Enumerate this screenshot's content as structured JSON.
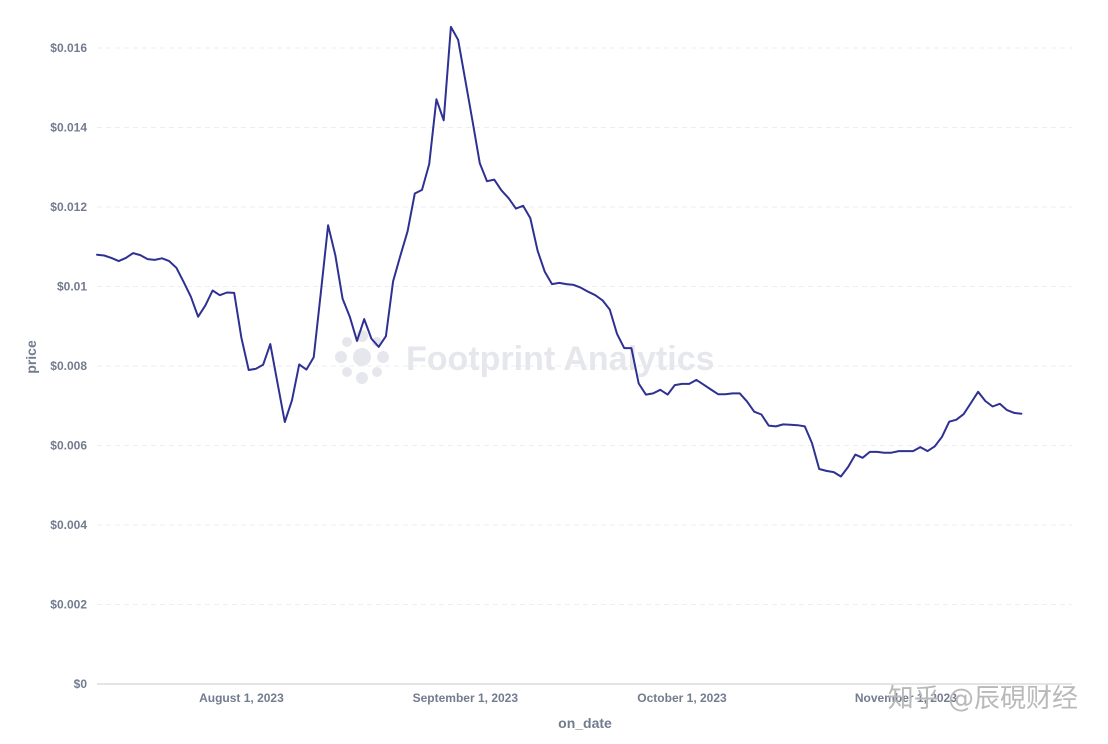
{
  "chart_data": {
    "type": "line",
    "xlabel": "on_date",
    "ylabel": "price",
    "ylim": [
      0,
      0.016
    ],
    "y_ticks": [
      {
        "value": 0,
        "label": "$0"
      },
      {
        "value": 0.002,
        "label": "$0.002"
      },
      {
        "value": 0.004,
        "label": "$0.004"
      },
      {
        "value": 0.006,
        "label": "$0.006"
      },
      {
        "value": 0.008,
        "label": "$0.008"
      },
      {
        "value": 0.01,
        "label": "$0.01"
      },
      {
        "value": 0.012,
        "label": "$0.012"
      },
      {
        "value": 0.014,
        "label": "$0.014"
      },
      {
        "value": 0.016,
        "label": "$0.016"
      }
    ],
    "x_range": [
      "2023-07-12",
      "2023-11-24"
    ],
    "x_ticks": [
      {
        "value": "2023-08-01",
        "label": "August 1, 2023"
      },
      {
        "value": "2023-09-01",
        "label": "September 1, 2023"
      },
      {
        "value": "2023-10-01",
        "label": "October 1, 2023"
      },
      {
        "value": "2023-11-01",
        "label": "November 1, 2023"
      }
    ],
    "grid": "horizontal dashed",
    "legend": "none",
    "series": [
      {
        "color": "#2e3192",
        "points": [
          [
            "2023-07-12",
            0.0108
          ],
          [
            "2023-07-13",
            0.01078
          ],
          [
            "2023-07-14",
            0.01072
          ],
          [
            "2023-07-15",
            0.01064
          ],
          [
            "2023-07-16",
            0.01072
          ],
          [
            "2023-07-17",
            0.01084
          ],
          [
            "2023-07-18",
            0.01079
          ],
          [
            "2023-07-19",
            0.01069
          ],
          [
            "2023-07-20",
            0.01067
          ],
          [
            "2023-07-21",
            0.01071
          ],
          [
            "2023-07-22",
            0.01064
          ],
          [
            "2023-07-23",
            0.01047
          ],
          [
            "2023-07-24",
            0.01011
          ],
          [
            "2023-07-25",
            0.00974
          ],
          [
            "2023-07-26",
            0.00924
          ],
          [
            "2023-07-27",
            0.00952
          ],
          [
            "2023-07-28",
            0.0099
          ],
          [
            "2023-07-29",
            0.00978
          ],
          [
            "2023-07-30",
            0.00985
          ],
          [
            "2023-07-31",
            0.00984
          ],
          [
            "2023-08-01",
            0.00871
          ],
          [
            "2023-08-02",
            0.0079
          ],
          [
            "2023-08-03",
            0.00793
          ],
          [
            "2023-08-04",
            0.00803
          ],
          [
            "2023-08-05",
            0.00855
          ],
          [
            "2023-08-06",
            0.00756
          ],
          [
            "2023-08-07",
            0.00659
          ],
          [
            "2023-08-08",
            0.00714
          ],
          [
            "2023-08-09",
            0.00804
          ],
          [
            "2023-08-10",
            0.00791
          ],
          [
            "2023-08-11",
            0.00822
          ],
          [
            "2023-08-12",
            0.00986
          ],
          [
            "2023-08-13",
            0.01154
          ],
          [
            "2023-08-14",
            0.01079
          ],
          [
            "2023-08-15",
            0.00969
          ],
          [
            "2023-08-16",
            0.00924
          ],
          [
            "2023-08-17",
            0.00863
          ],
          [
            "2023-08-18",
            0.00918
          ],
          [
            "2023-08-19",
            0.00869
          ],
          [
            "2023-08-20",
            0.00848
          ],
          [
            "2023-08-21",
            0.00875
          ],
          [
            "2023-08-22",
            0.01013
          ],
          [
            "2023-08-23",
            0.01077
          ],
          [
            "2023-08-24",
            0.01139
          ],
          [
            "2023-08-25",
            0.01234
          ],
          [
            "2023-08-26",
            0.01243
          ],
          [
            "2023-08-27",
            0.01308
          ],
          [
            "2023-08-28",
            0.01471
          ],
          [
            "2023-08-29",
            0.01418
          ],
          [
            "2023-08-30",
            0.01653
          ],
          [
            "2023-08-31",
            0.01621
          ],
          [
            "2023-09-01",
            0.01519
          ],
          [
            "2023-09-02",
            0.01415
          ],
          [
            "2023-09-03",
            0.0131
          ],
          [
            "2023-09-04",
            0.01265
          ],
          [
            "2023-09-05",
            0.01269
          ],
          [
            "2023-09-06",
            0.01242
          ],
          [
            "2023-09-07",
            0.01222
          ],
          [
            "2023-09-08",
            0.01196
          ],
          [
            "2023-09-09",
            0.01203
          ],
          [
            "2023-09-10",
            0.01172
          ],
          [
            "2023-09-11",
            0.0109
          ],
          [
            "2023-09-12",
            0.01037
          ],
          [
            "2023-09-13",
            0.01006
          ],
          [
            "2023-09-14",
            0.01009
          ],
          [
            "2023-09-15",
            0.01006
          ],
          [
            "2023-09-16",
            0.01004
          ],
          [
            "2023-09-17",
            0.00997
          ],
          [
            "2023-09-18",
            0.00987
          ],
          [
            "2023-09-19",
            0.00978
          ],
          [
            "2023-09-20",
            0.00965
          ],
          [
            "2023-09-21",
            0.00942
          ],
          [
            "2023-09-22",
            0.00881
          ],
          [
            "2023-09-23",
            0.00845
          ],
          [
            "2023-09-24",
            0.00845
          ],
          [
            "2023-09-25",
            0.00756
          ],
          [
            "2023-09-26",
            0.00728
          ],
          [
            "2023-09-27",
            0.00731
          ],
          [
            "2023-09-28",
            0.0074
          ],
          [
            "2023-09-29",
            0.00728
          ],
          [
            "2023-09-30",
            0.00752
          ],
          [
            "2023-10-01",
            0.00755
          ],
          [
            "2023-10-02",
            0.00755
          ],
          [
            "2023-10-03",
            0.00765
          ],
          [
            "2023-10-04",
            0.00753
          ],
          [
            "2023-10-05",
            0.00741
          ],
          [
            "2023-10-06",
            0.00729
          ],
          [
            "2023-10-07",
            0.00729
          ],
          [
            "2023-10-08",
            0.00731
          ],
          [
            "2023-10-09",
            0.00731
          ],
          [
            "2023-10-10",
            0.00711
          ],
          [
            "2023-10-11",
            0.00685
          ],
          [
            "2023-10-12",
            0.00678
          ],
          [
            "2023-10-13",
            0.0065
          ],
          [
            "2023-10-14",
            0.00648
          ],
          [
            "2023-10-15",
            0.00653
          ],
          [
            "2023-10-16",
            0.00652
          ],
          [
            "2023-10-17",
            0.00651
          ],
          [
            "2023-10-18",
            0.00648
          ],
          [
            "2023-10-19",
            0.00606
          ],
          [
            "2023-10-20",
            0.00541
          ],
          [
            "2023-10-21",
            0.00536
          ],
          [
            "2023-10-22",
            0.00533
          ],
          [
            "2023-10-23",
            0.00522
          ],
          [
            "2023-10-24",
            0.00546
          ],
          [
            "2023-10-25",
            0.00577
          ],
          [
            "2023-10-26",
            0.00569
          ],
          [
            "2023-10-27",
            0.00584
          ],
          [
            "2023-10-28",
            0.00584
          ],
          [
            "2023-10-29",
            0.00582
          ],
          [
            "2023-10-30",
            0.00582
          ],
          [
            "2023-10-31",
            0.00586
          ],
          [
            "2023-11-01",
            0.00586
          ],
          [
            "2023-11-02",
            0.00586
          ],
          [
            "2023-11-03",
            0.00596
          ],
          [
            "2023-11-04",
            0.00586
          ],
          [
            "2023-11-05",
            0.00598
          ],
          [
            "2023-11-06",
            0.00622
          ],
          [
            "2023-11-07",
            0.0066
          ],
          [
            "2023-11-08",
            0.00665
          ],
          [
            "2023-11-09",
            0.00679
          ],
          [
            "2023-11-10",
            0.00707
          ],
          [
            "2023-11-11",
            0.00735
          ],
          [
            "2023-11-12",
            0.00712
          ],
          [
            "2023-11-13",
            0.00698
          ],
          [
            "2023-11-14",
            0.00705
          ],
          [
            "2023-11-15",
            0.00689
          ],
          [
            "2023-11-16",
            0.00682
          ],
          [
            "2023-11-17",
            0.0068
          ]
        ]
      }
    ]
  },
  "watermark": {
    "text": "Footprint Analytics",
    "icon": "footprint-logo-icon"
  },
  "corner_watermark": {
    "text": "知乎 @辰硯财经"
  }
}
